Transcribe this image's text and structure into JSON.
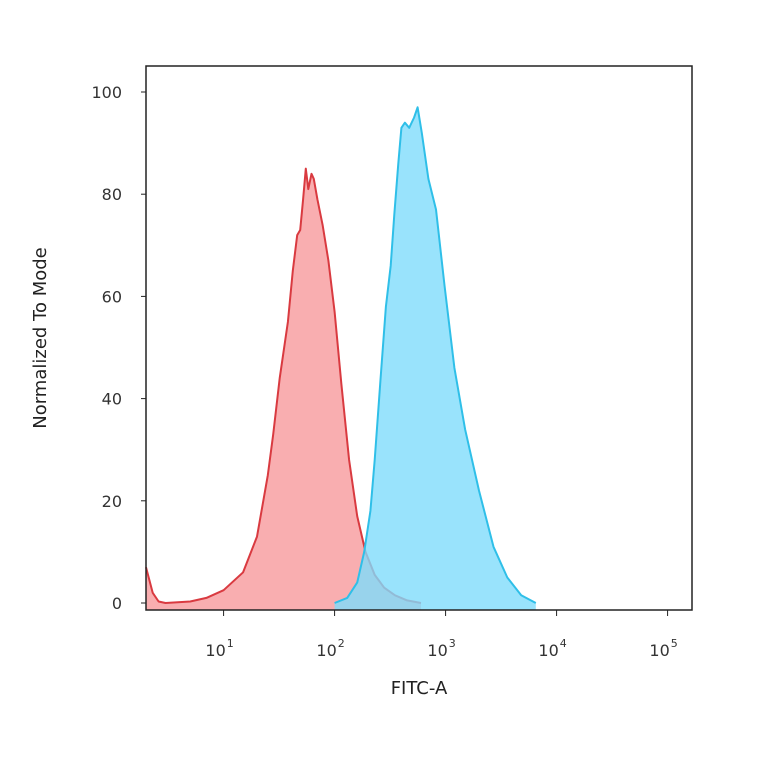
{
  "chart_data": {
    "type": "area",
    "xlabel": "FITC-A",
    "ylabel": "Normalized To Mode",
    "xscale": "log",
    "xlim": [
      2,
      100000
    ],
    "ylim": [
      0,
      100
    ],
    "grid": false,
    "x_ticks": [
      {
        "base": "10",
        "exp": "1",
        "value": 10
      },
      {
        "base": "10",
        "exp": "2",
        "value": 100
      },
      {
        "base": "10",
        "exp": "3",
        "value": 1000
      },
      {
        "base": "10",
        "exp": "4",
        "value": 10000
      },
      {
        "base": "10",
        "exp": "5",
        "value": 100000
      }
    ],
    "y_ticks": [
      {
        "label": "0",
        "value": 0
      },
      {
        "label": "20",
        "value": 20
      },
      {
        "label": "40",
        "value": 40
      },
      {
        "label": "60",
        "value": 60
      },
      {
        "label": "80",
        "value": 80
      },
      {
        "label": "100",
        "value": 100
      }
    ],
    "series": [
      {
        "fill": "#f79a9c",
        "stroke": "#d93a40",
        "points": [
          [
            2,
            7
          ],
          [
            2.3,
            2
          ],
          [
            2.6,
            0.3
          ],
          [
            3,
            0
          ],
          [
            5,
            0.3
          ],
          [
            7,
            1
          ],
          [
            10,
            2.5
          ],
          [
            15,
            6
          ],
          [
            20,
            13
          ],
          [
            25,
            25
          ],
          [
            28,
            33
          ],
          [
            32,
            44
          ],
          [
            38,
            55
          ],
          [
            42,
            65
          ],
          [
            46,
            72
          ],
          [
            49,
            73
          ],
          [
            52,
            79
          ],
          [
            55,
            85
          ],
          [
            58,
            81
          ],
          [
            62,
            84
          ],
          [
            65,
            83
          ],
          [
            70,
            79
          ],
          [
            78,
            74
          ],
          [
            88,
            67
          ],
          [
            100,
            57
          ],
          [
            115,
            43
          ],
          [
            135,
            28
          ],
          [
            160,
            17
          ],
          [
            190,
            10
          ],
          [
            230,
            5.5
          ],
          [
            280,
            3
          ],
          [
            350,
            1.5
          ],
          [
            450,
            0.5
          ],
          [
            600,
            0
          ]
        ]
      },
      {
        "fill": "#7fdcfb",
        "stroke": "#2fbfe8",
        "points": [
          [
            100,
            0
          ],
          [
            130,
            1
          ],
          [
            160,
            4
          ],
          [
            185,
            10
          ],
          [
            210,
            18
          ],
          [
            230,
            28
          ],
          [
            260,
            44
          ],
          [
            290,
            58
          ],
          [
            320,
            66
          ],
          [
            345,
            76
          ],
          [
            375,
            86
          ],
          [
            400,
            93
          ],
          [
            430,
            94
          ],
          [
            470,
            93
          ],
          [
            520,
            95
          ],
          [
            560,
            97
          ],
          [
            610,
            92
          ],
          [
            700,
            83
          ],
          [
            820,
            77
          ],
          [
            980,
            62
          ],
          [
            1200,
            46
          ],
          [
            1500,
            34
          ],
          [
            2000,
            22
          ],
          [
            2700,
            11
          ],
          [
            3600,
            5
          ],
          [
            4800,
            1.5
          ],
          [
            6500,
            0
          ]
        ]
      }
    ]
  }
}
